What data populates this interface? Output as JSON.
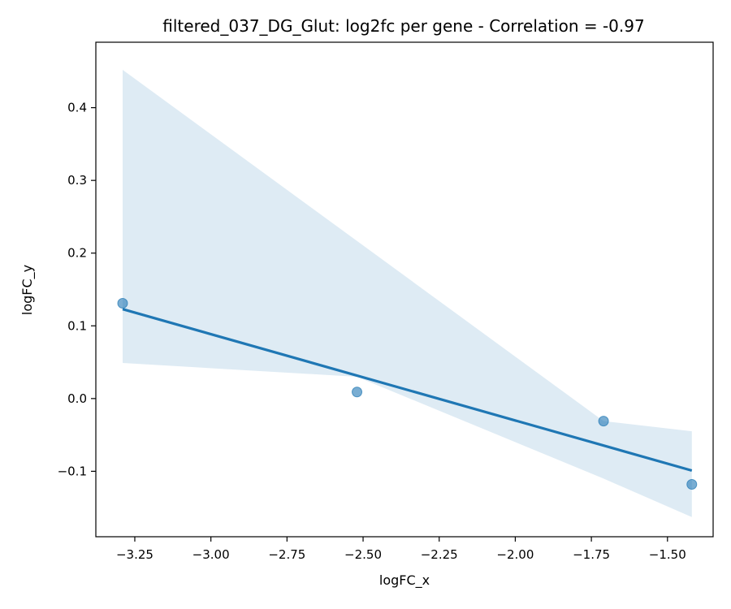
{
  "chart_data": {
    "type": "scatter",
    "title": "filtered_037_DG_Glut: log2fc per gene - Correlation = -0.97",
    "xlabel": "logFC_x",
    "ylabel": "logFC_y",
    "xlim": [
      -3.378,
      -1.35
    ],
    "ylim": [
      -0.19,
      0.49
    ],
    "xticks": [
      -3.25,
      -3.0,
      -2.75,
      -2.5,
      -2.25,
      -2.0,
      -1.75,
      -1.5
    ],
    "xtick_labels": [
      "−3.25",
      "−3.00",
      "−2.75",
      "−2.50",
      "−2.25",
      "−2.00",
      "−1.75",
      "−1.50"
    ],
    "yticks": [
      -0.1,
      0.0,
      0.1,
      0.2,
      0.3,
      0.4
    ],
    "ytick_labels": [
      "−0.1",
      "0.0",
      "0.1",
      "0.2",
      "0.3",
      "0.4"
    ],
    "grid": false,
    "points": [
      {
        "x": -3.29,
        "y": 0.131
      },
      {
        "x": -2.52,
        "y": 0.009
      },
      {
        "x": -1.71,
        "y": -0.031
      },
      {
        "x": -1.42,
        "y": -0.118
      }
    ],
    "regression_line": {
      "x": [
        -3.29,
        -1.42
      ],
      "y": [
        0.123,
        -0.099
      ]
    },
    "confidence_band": {
      "upper": [
        [
          -3.29,
          0.452
        ],
        [
          -1.71,
          -0.031
        ],
        [
          -1.42,
          -0.045
        ]
      ],
      "lower": [
        [
          -3.29,
          0.049
        ],
        [
          -2.52,
          0.03
        ],
        [
          -1.71,
          -0.11
        ],
        [
          -1.42,
          -0.163
        ]
      ]
    },
    "colors": {
      "points": "#1f77b4",
      "line": "#1f77b4",
      "band": "#1f77b4"
    }
  }
}
